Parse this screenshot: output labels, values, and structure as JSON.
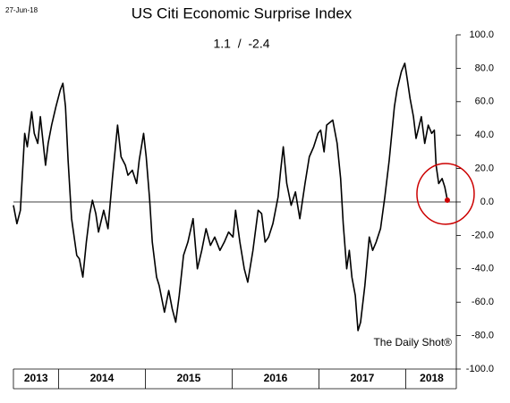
{
  "chart_data": {
    "type": "line",
    "date_stamp": "27-Jun-18",
    "title": "US Citi Economic Surprise Index",
    "subtitle": "1.1  /  -2.4",
    "source": "The Daily Shot®",
    "year_labels": [
      "2013",
      "2014",
      "2015",
      "2016",
      "2017",
      "2018"
    ],
    "x": [
      2013.48,
      2013.52,
      2013.56,
      2013.61,
      2013.64,
      2013.69,
      2013.72,
      2013.76,
      2013.79,
      2013.85,
      2013.88,
      2013.92,
      2013.97,
      2014.02,
      2014.05,
      2014.08,
      2014.11,
      2014.15,
      2014.21,
      2014.24,
      2014.28,
      2014.32,
      2014.36,
      2014.39,
      2014.43,
      2014.46,
      2014.52,
      2014.57,
      2014.62,
      2014.65,
      2014.68,
      2014.72,
      2014.77,
      2014.8,
      2014.85,
      2014.9,
      2014.93,
      2014.98,
      2015.01,
      2015.05,
      2015.08,
      2015.13,
      2015.16,
      2015.22,
      2015.27,
      2015.31,
      2015.35,
      2015.39,
      2015.44,
      2015.49,
      2015.55,
      2015.6,
      2015.65,
      2015.7,
      2015.75,
      2015.8,
      2015.86,
      2015.91,
      2015.96,
      2016.01,
      2016.04,
      2016.09,
      2016.14,
      2016.18,
      2016.24,
      2016.3,
      2016.34,
      2016.38,
      2016.42,
      2016.47,
      2016.53,
      2016.56,
      2016.59,
      2016.63,
      2016.68,
      2016.73,
      2016.78,
      2016.84,
      2016.89,
      2016.94,
      2016.99,
      2017.02,
      2017.06,
      2017.09,
      2017.16,
      2017.21,
      2017.25,
      2017.28,
      2017.32,
      2017.35,
      2017.38,
      2017.42,
      2017.45,
      2017.48,
      2017.53,
      2017.58,
      2017.62,
      2017.66,
      2017.71,
      2017.76,
      2017.81,
      2017.87,
      2017.9,
      2017.95,
      2017.99,
      2018.02,
      2018.05,
      2018.09,
      2018.12,
      2018.18,
      2018.22,
      2018.26,
      2018.3,
      2018.33,
      2018.35,
      2018.38,
      2018.42,
      2018.45,
      2018.48
    ],
    "series": [
      {
        "name": "US Citi Economic Surprise Index",
        "color": "#000000",
        "values": [
          -2,
          -13,
          -5,
          41,
          33,
          54,
          41,
          35,
          51,
          22,
          35,
          46,
          57,
          67,
          71,
          57,
          25,
          -10,
          -32,
          -34,
          -45,
          -24,
          -7,
          1,
          -7,
          -18,
          -5,
          -16,
          14,
          30,
          46,
          27,
          22,
          16,
          19,
          11,
          25,
          41,
          27,
          1,
          -24,
          -45,
          -50,
          -66,
          -53,
          -64,
          -72,
          -56,
          -32,
          -24,
          -10,
          -40,
          -29,
          -16,
          -26,
          -21,
          -29,
          -24,
          -18,
          -21,
          -5,
          -24,
          -40,
          -48,
          -29,
          -5,
          -7,
          -24,
          -21,
          -13,
          3,
          19,
          33,
          11,
          -2,
          6,
          -10,
          11,
          27,
          33,
          41,
          43,
          30,
          46,
          49,
          35,
          14,
          -13,
          -40,
          -29,
          -45,
          -56,
          -77,
          -72,
          -50,
          -21,
          -29,
          -24,
          -16,
          3,
          25,
          57,
          67,
          78,
          83,
          73,
          62,
          51,
          38,
          51,
          35,
          46,
          41,
          43,
          22,
          11,
          14,
          9,
          1.1
        ]
      }
    ],
    "highlight_color": "#cc0000",
    "xlim": [
      2013.48,
      2018.6
    ],
    "xticks": [
      2014,
      2015,
      2016,
      2017,
      2018
    ],
    "ylim": [
      -100,
      100
    ],
    "yticks": [
      {
        "value": -100,
        "label": "-100.0"
      },
      {
        "value": -80,
        "label": "-80.0"
      },
      {
        "value": -60,
        "label": "-60.0"
      },
      {
        "value": -40,
        "label": "-40.0"
      },
      {
        "value": -20,
        "label": "-20.0"
      },
      {
        "value": 0,
        "label": "0.0"
      },
      {
        "value": 20,
        "label": "20.0"
      },
      {
        "value": 40,
        "label": "40.0"
      },
      {
        "value": 60,
        "label": "60.0"
      },
      {
        "value": 80,
        "label": "80.0"
      },
      {
        "value": 100,
        "label": "100.0"
      }
    ]
  }
}
